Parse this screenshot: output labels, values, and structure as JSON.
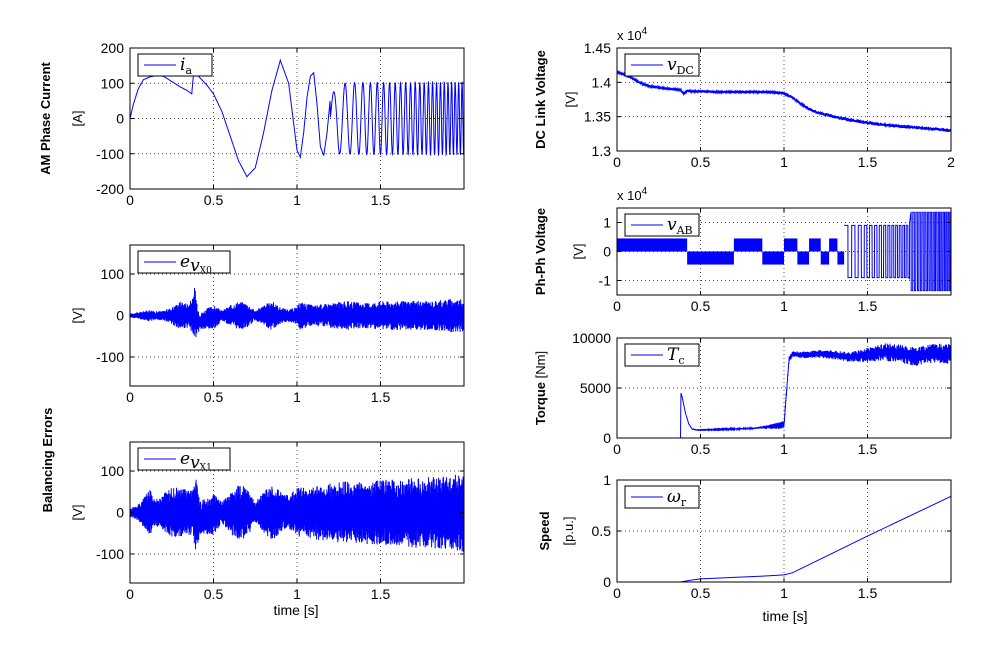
{
  "figure": {
    "xlabel": "time [s]",
    "group_label_balancing": "Balancing Errors"
  },
  "chart_data": [
    {
      "id": "ia",
      "type": "line",
      "ylabel_bold": "AM Phase Current",
      "ylabel": "[A]",
      "legend": {
        "main": "i",
        "sub": "a"
      },
      "xlim": [
        0,
        2.0
      ],
      "ylim": [
        -200,
        200
      ],
      "xticks": [
        0,
        0.5,
        1,
        1.5
      ],
      "xtick_labels": [
        "0",
        "0.5",
        "1",
        "1.5"
      ],
      "yticks": [
        -200,
        -100,
        0,
        100,
        200
      ],
      "ytick_labels": [
        "-200",
        "-100",
        "0",
        "100",
        "200"
      ],
      "color": "#0000ff",
      "grid": true,
      "series": [
        {
          "x": [
            0.0,
            0.02,
            0.05,
            0.08,
            0.12,
            0.16,
            0.2,
            0.25,
            0.3,
            0.34,
            0.37,
            0.375,
            0.38,
            0.39,
            0.41,
            0.43,
            0.46,
            0.5,
            0.55,
            0.6,
            0.65,
            0.7,
            0.75,
            0.8,
            0.85,
            0.9,
            0.95,
            1.0,
            1.02,
            1.04,
            1.06,
            1.08,
            1.1,
            1.12,
            1.14,
            1.16,
            1.18,
            1.2,
            1.25,
            1.3,
            1.35,
            1.4,
            1.45,
            1.5,
            1.6,
            1.7,
            1.8,
            1.9,
            2.0
          ],
          "y": [
            0,
            40,
            85,
            110,
            118,
            122,
            120,
            105,
            90,
            80,
            70,
            100,
            122,
            125,
            120,
            110,
            95,
            70,
            20,
            -50,
            -120,
            -165,
            -140,
            -40,
            80,
            165,
            100,
            -90,
            -110,
            -40,
            60,
            120,
            130,
            40,
            -80,
            -105,
            -40,
            60,
            100,
            100,
            102,
            102,
            102,
            102,
            102,
            102,
            103,
            103,
            103
          ],
          "envelope_from": 1.2,
          "osc_freq": [
            [
              1.2,
              12
            ],
            [
              2.0,
              50
            ]
          ]
        }
      ]
    },
    {
      "id": "ev0",
      "type": "line",
      "ylabel": "[V]",
      "legend": {
        "main": "e",
        "sub": "v",
        "subsub": "X0"
      },
      "xlim": [
        0,
        2.0
      ],
      "ylim": [
        -170,
        170
      ],
      "xticks": [
        0,
        0.5,
        1,
        1.5
      ],
      "xtick_labels": [
        "0",
        "0.5",
        "1",
        "1.5"
      ],
      "yticks": [
        -100,
        0,
        100
      ],
      "ytick_labels": [
        "-100",
        "0",
        "100"
      ],
      "color": "#0000ff",
      "grid": true,
      "series": [
        {
          "x": [
            0.0,
            0.05,
            0.1,
            0.12,
            0.15,
            0.2,
            0.25,
            0.3,
            0.35,
            0.38,
            0.39,
            0.4,
            0.42,
            0.45,
            0.5,
            0.55,
            0.6,
            0.65,
            0.7,
            0.75,
            0.8,
            0.85,
            0.9,
            0.95,
            1.0,
            1.02,
            1.05,
            1.1,
            1.2,
            1.3,
            1.4,
            1.5,
            1.6,
            1.7,
            1.8,
            1.9,
            2.0
          ],
          "amp": [
            5,
            8,
            12,
            15,
            10,
            12,
            20,
            35,
            30,
            45,
            70,
            40,
            20,
            25,
            30,
            12,
            25,
            35,
            30,
            12,
            25,
            35,
            20,
            15,
            20,
            35,
            30,
            25,
            30,
            35,
            30,
            35,
            35,
            35,
            35,
            40,
            40
          ],
          "center": [
            0,
            0,
            0,
            0,
            0,
            0,
            0,
            0,
            0,
            0,
            10,
            -10,
            -15,
            -10,
            -5,
            0,
            0,
            0,
            0,
            0,
            0,
            0,
            0,
            0,
            0,
            0,
            0,
            0,
            0,
            0,
            0,
            0,
            0,
            0,
            0,
            0,
            0
          ]
        }
      ]
    },
    {
      "id": "ev1",
      "type": "line",
      "ylabel": "[V]",
      "legend": {
        "main": "e",
        "sub": "v",
        "subsub": "X1"
      },
      "xlim": [
        0,
        2.0
      ],
      "ylim": [
        -170,
        170
      ],
      "xticks": [
        0,
        0.5,
        1,
        1.5
      ],
      "xtick_labels": [
        "0",
        "0.5",
        "1",
        "1.5"
      ],
      "yticks": [
        -100,
        0,
        100
      ],
      "ytick_labels": [
        "-100",
        "0",
        "100"
      ],
      "color": "#0000ff",
      "grid": true,
      "series": [
        {
          "x": [
            0.0,
            0.05,
            0.1,
            0.12,
            0.15,
            0.2,
            0.25,
            0.3,
            0.35,
            0.38,
            0.39,
            0.4,
            0.42,
            0.45,
            0.5,
            0.55,
            0.6,
            0.65,
            0.7,
            0.75,
            0.8,
            0.85,
            0.9,
            0.95,
            1.0,
            1.05,
            1.1,
            1.2,
            1.3,
            1.4,
            1.5,
            1.6,
            1.7,
            1.8,
            1.9,
            2.0
          ],
          "amp": [
            10,
            20,
            45,
            55,
            30,
            45,
            60,
            60,
            55,
            60,
            100,
            80,
            40,
            45,
            50,
            25,
            50,
            70,
            60,
            25,
            50,
            70,
            50,
            40,
            60,
            60,
            65,
            70,
            75,
            75,
            80,
            80,
            85,
            85,
            90,
            95
          ],
          "center": [
            0,
            0,
            0,
            0,
            0,
            0,
            0,
            0,
            0,
            0,
            5,
            -10,
            -15,
            -10,
            -5,
            0,
            0,
            0,
            0,
            0,
            0,
            0,
            0,
            0,
            0,
            0,
            0,
            0,
            0,
            0,
            0,
            0,
            0,
            0,
            0,
            0
          ]
        }
      ]
    },
    {
      "id": "vdc",
      "type": "line",
      "ylabel_bold": "DC Link Voltage",
      "ylabel": "[V]",
      "exponent": "x 10",
      "exponent_power": "4",
      "legend": {
        "main": "v",
        "sub": "DC"
      },
      "xlim": [
        0,
        2
      ],
      "ylim": [
        1.3,
        1.45
      ],
      "xticks": [
        0,
        0.5,
        1,
        1.5,
        2
      ],
      "xtick_labels": [
        "0",
        "0.5",
        "1",
        "1.5",
        "2"
      ],
      "yticks": [
        1.3,
        1.35,
        1.4,
        1.45
      ],
      "ytick_labels": [
        "1.3",
        "1.35",
        "1.4",
        "1.45"
      ],
      "color": "#0000ff",
      "grid": true,
      "series": [
        {
          "x": [
            0,
            0.05,
            0.1,
            0.15,
            0.2,
            0.3,
            0.38,
            0.4,
            0.42,
            0.45,
            0.5,
            0.6,
            0.7,
            0.8,
            0.9,
            1.0,
            1.05,
            1.1,
            1.15,
            1.2,
            1.3,
            1.4,
            1.5,
            1.6,
            1.7,
            1.8,
            1.9,
            2.0
          ],
          "y": [
            1.415,
            1.411,
            1.405,
            1.398,
            1.394,
            1.391,
            1.389,
            1.383,
            1.388,
            1.387,
            1.387,
            1.386,
            1.386,
            1.386,
            1.386,
            1.384,
            1.378,
            1.369,
            1.361,
            1.356,
            1.35,
            1.345,
            1.341,
            1.338,
            1.336,
            1.334,
            1.332,
            1.33
          ],
          "noise": 0.002
        }
      ]
    },
    {
      "id": "vab",
      "type": "line",
      "ylabel_bold": "Ph-Ph Voltage",
      "ylabel": "[V]",
      "exponent": "x 10",
      "exponent_power": "4",
      "legend": {
        "main": "v",
        "sub": "AB"
      },
      "xlim": [
        0,
        2.0
      ],
      "ylim": [
        -1.5,
        1.5
      ],
      "xticks": [
        0,
        0.5,
        1,
        1.5
      ],
      "xtick_labels": [
        "0",
        "0.5",
        "1",
        "1.5"
      ],
      "yticks": [
        -1,
        0,
        1
      ],
      "ytick_labels": [
        "-1",
        "0",
        "1"
      ],
      "color": "#0000ff",
      "grid": true,
      "series": [
        {
          "segments": [
            [
              0.0,
              0.42,
              0.45
            ],
            [
              0.42,
              0.7,
              -0.45
            ],
            [
              0.7,
              0.87,
              0.45
            ],
            [
              0.87,
              1.0,
              -0.45
            ],
            [
              1.0,
              1.08,
              0.45
            ],
            [
              1.08,
              1.15,
              -0.45
            ],
            [
              1.15,
              1.22,
              0.45
            ],
            [
              1.22,
              1.27,
              -0.45
            ],
            [
              1.27,
              1.32,
              0.45
            ],
            [
              1.32,
              1.36,
              -0.45
            ]
          ],
          "highfreq_start": 1.36,
          "highfreq_amp": [
            [
              1.36,
              0.9
            ],
            [
              1.75,
              0.9
            ],
            [
              1.76,
              1.35
            ],
            [
              2.0,
              1.35
            ]
          ]
        }
      ]
    },
    {
      "id": "tc",
      "type": "line",
      "ylabel_bold": "Torque",
      "ylabel": "[Nm]",
      "legend": {
        "main": "T",
        "sub": "c"
      },
      "xlim": [
        0,
        2.0
      ],
      "ylim": [
        0,
        10000
      ],
      "xticks": [
        0,
        0.5,
        1,
        1.5
      ],
      "xtick_labels": [
        "0",
        "0.5",
        "1",
        "1.5"
      ],
      "yticks": [
        0,
        5000,
        10000
      ],
      "ytick_labels": [
        "0",
        "5000",
        "10000"
      ],
      "color": "#0000ff",
      "grid": true,
      "series": [
        {
          "x": [
            0.38,
            0.383,
            0.39,
            0.41,
            0.43,
            0.45,
            0.48,
            0.5,
            0.6,
            0.7,
            0.8,
            0.9,
            1.0,
            1.01,
            1.03,
            1.05,
            1.1,
            1.2,
            1.3,
            1.4,
            1.5,
            1.6,
            1.7,
            1.8,
            1.9,
            2.0
          ],
          "y": [
            0,
            4500,
            4100,
            2500,
            1400,
            900,
            800,
            800,
            850,
            900,
            950,
            1100,
            1300,
            3500,
            7800,
            8400,
            8300,
            8400,
            8300,
            8100,
            8300,
            8600,
            8400,
            8100,
            8500,
            8400
          ],
          "ripple": [
            [
              0.38,
              0
            ],
            [
              0.85,
              100
            ],
            [
              1.0,
              400
            ],
            [
              1.05,
              300
            ],
            [
              1.4,
              500
            ],
            [
              1.6,
              900
            ],
            [
              2.0,
              1000
            ]
          ]
        }
      ]
    },
    {
      "id": "wr",
      "type": "line",
      "ylabel_bold": "Speed",
      "ylabel": "[p.u.]",
      "legend": {
        "main": "ω",
        "sub": "r"
      },
      "xlim": [
        0,
        2.0
      ],
      "ylim": [
        0,
        1
      ],
      "xticks": [
        0,
        0.5,
        1,
        1.5
      ],
      "xtick_labels": [
        "0",
        "0.5",
        "1",
        "1.5"
      ],
      "yticks": [
        0,
        0.5,
        1
      ],
      "ytick_labels": [
        "0",
        "0.5",
        "1"
      ],
      "color": "#0000ff",
      "grid": true,
      "series": [
        {
          "x": [
            0.38,
            0.45,
            0.5,
            0.7,
            0.9,
            1.0,
            1.05,
            1.5,
            2.0
          ],
          "y": [
            0.0,
            0.02,
            0.03,
            0.045,
            0.06,
            0.07,
            0.09,
            0.45,
            0.84
          ]
        }
      ]
    }
  ]
}
